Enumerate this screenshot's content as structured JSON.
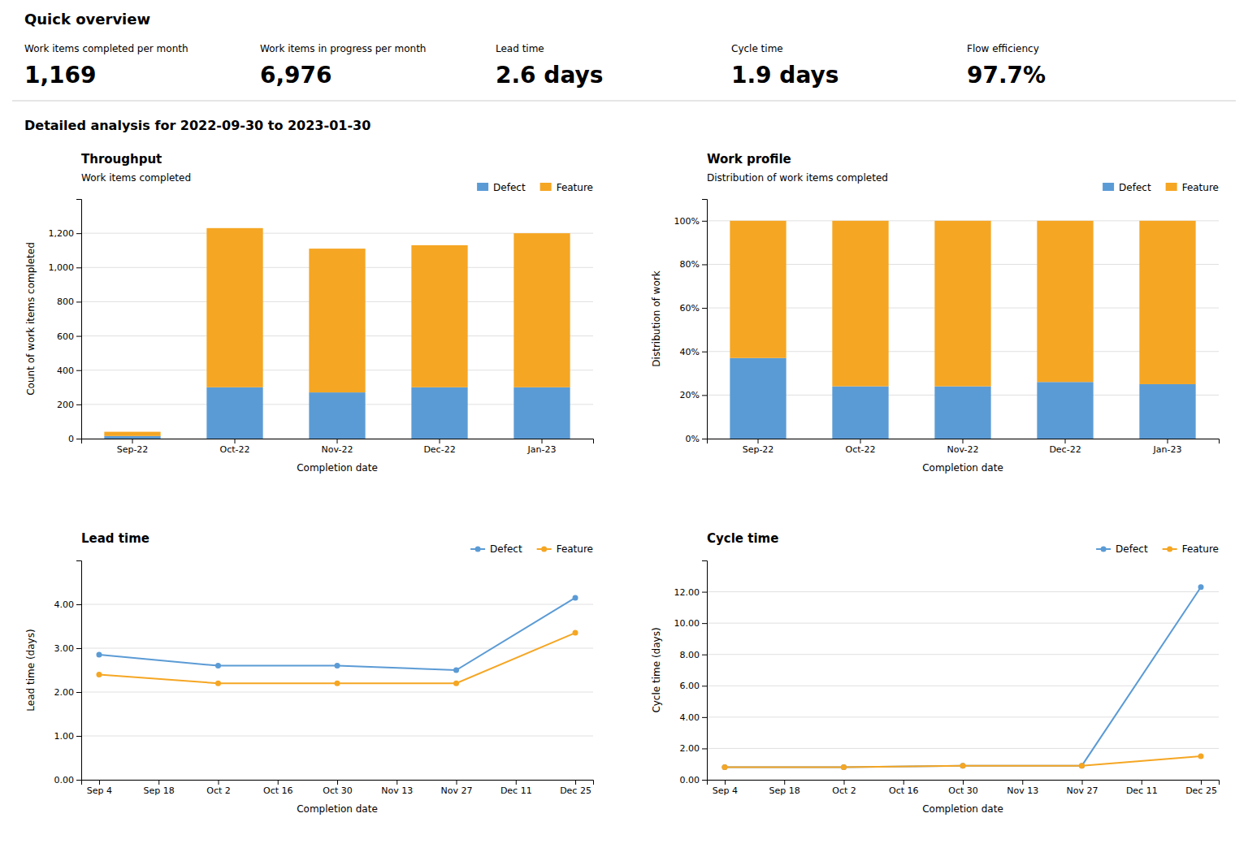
{
  "title": "Quick overview",
  "metrics": [
    {
      "label": "Work items completed per month",
      "value": {
        "value": 1169,
        "label": "1,169"
      }
    },
    {
      "label": "Work items in progress per month",
      "value": {
        "value": 6976,
        "label": "6,976"
      }
    },
    {
      "label": "Lead time",
      "value": {
        "value": 2.6,
        "label": "2.6 days"
      }
    },
    {
      "label": "Cycle time",
      "value": {
        "value": 1.9,
        "label": "1.9 days"
      }
    },
    {
      "label": "Flow efficiency",
      "value": {
        "value": 97.7,
        "label": "97.7%"
      }
    }
  ],
  "subtitle": "Detailed analysis for 2022-09-30 to 2023-01-30",
  "chart_data": [
    {
      "type": "bar",
      "stacked": true,
      "title": "Throughput",
      "subtitle": "Work items completed",
      "xlabel": "Completion date",
      "ylabel": "Count of work items completed",
      "categories": [
        "Sep-22",
        "Oct-22",
        "Nov-22",
        "Dec-22",
        "Jan-23"
      ],
      "series": [
        {
          "name": "Defect",
          "color": "#5B9BD5",
          "values": [
            15,
            300,
            270,
            300,
            300
          ]
        },
        {
          "name": "Feature",
          "color": "#F5A623",
          "values": [
            25,
            930,
            840,
            830,
            900
          ]
        }
      ],
      "ylim": [
        0,
        1400
      ],
      "yticks": [
        0,
        200,
        400,
        600,
        800,
        {
          "value": 1000,
          "label": "1,000"
        },
        {
          "value": 1200,
          "label": "1,200"
        }
      ],
      "grid": true,
      "legend": "upper right"
    },
    {
      "type": "bar",
      "stacked": true,
      "title": "Work profile",
      "subtitle": "Distribution of work items completed",
      "xlabel": "Completion date",
      "ylabel": "Distribution of work",
      "categories": [
        "Sep-22",
        "Oct-22",
        "Nov-22",
        "Dec-22",
        "Jan-23"
      ],
      "series": [
        {
          "name": "Defect",
          "color": "#5B9BD5",
          "values": [
            37,
            24,
            24,
            26,
            25
          ]
        },
        {
          "name": "Feature",
          "color": "#F5A623",
          "values": [
            63,
            76,
            76,
            74,
            75
          ]
        }
      ],
      "ylim": [
        0,
        110
      ],
      "yticks": [
        {
          "value": 0,
          "label": "0%"
        },
        {
          "value": 20,
          "label": "20%"
        },
        {
          "value": 40,
          "label": "40%"
        },
        {
          "value": 60,
          "label": "60%"
        },
        {
          "value": 80,
          "label": "80%"
        },
        {
          "value": 100,
          "label": "100%"
        }
      ],
      "grid": true,
      "legend": "upper right"
    },
    {
      "type": "line",
      "title": "Lead time",
      "xlabel": "Completion date",
      "ylabel": "Lead time (days)",
      "categories": [
        "Sep 4",
        "Sep 18",
        "Oct 2",
        "Oct 16",
        "Oct 30",
        "Nov 13",
        "Nov 27",
        "Dec 11",
        "Dec 25"
      ],
      "series": [
        {
          "name": "Defect",
          "color": "#5B9BD5",
          "values": [
            2.85,
            null,
            2.6,
            null,
            2.6,
            null,
            2.5,
            null,
            4.15
          ]
        },
        {
          "name": "Feature",
          "color": "#F5A623",
          "values": [
            2.4,
            null,
            2.2,
            null,
            2.2,
            null,
            2.2,
            null,
            3.35
          ]
        }
      ],
      "ylim": [
        0,
        5
      ],
      "yticks": [
        {
          "value": 0,
          "label": "0.00"
        },
        {
          "value": 1,
          "label": "1.00"
        },
        {
          "value": 2,
          "label": "2.00"
        },
        {
          "value": 3,
          "label": "3.00"
        },
        {
          "value": 4,
          "label": "4.00"
        }
      ],
      "marker": "circle",
      "grid": true,
      "legend": "upper right"
    },
    {
      "type": "line",
      "title": "Cycle time",
      "xlabel": "Completion date",
      "ylabel": "Cycle time (days)",
      "categories": [
        "Sep 4",
        "Sep 18",
        "Oct 2",
        "Oct 16",
        "Oct 30",
        "Nov 13",
        "Nov 27",
        "Dec 11",
        "Dec 25"
      ],
      "series": [
        {
          "name": "Defect",
          "color": "#5B9BD5",
          "values": [
            0.8,
            null,
            0.8,
            null,
            0.9,
            null,
            0.9,
            null,
            12.3
          ]
        },
        {
          "name": "Feature",
          "color": "#F5A623",
          "values": [
            0.8,
            null,
            0.8,
            null,
            0.9,
            null,
            0.9,
            null,
            1.5
          ]
        }
      ],
      "ylim": [
        0,
        14
      ],
      "yticks": [
        {
          "value": 0,
          "label": "0.00"
        },
        {
          "value": 2,
          "label": "2.00"
        },
        {
          "value": 4,
          "label": "4.00"
        },
        {
          "value": 6,
          "label": "6.00"
        },
        {
          "value": 8,
          "label": "8.00"
        },
        {
          "value": 10,
          "label": "10.00"
        },
        {
          "value": 12,
          "label": "12.00"
        }
      ],
      "marker": "circle",
      "grid": true,
      "legend": "upper right"
    }
  ]
}
